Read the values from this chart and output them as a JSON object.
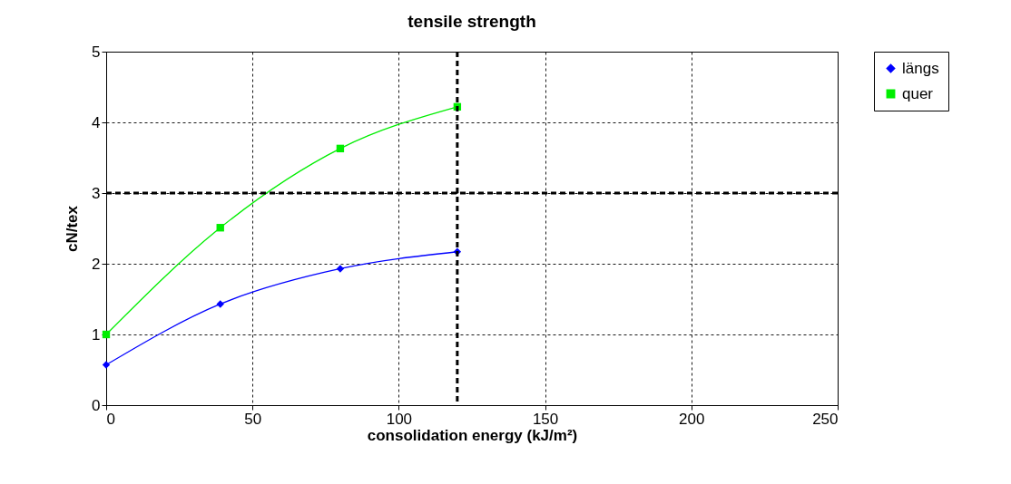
{
  "chart_data": {
    "type": "line",
    "title": "tensile strength",
    "xlabel": "consolidation energy (kJ/m²)",
    "ylabel": "cN/tex",
    "xlim": [
      0,
      250
    ],
    "xticks": [
      0,
      50,
      100,
      150,
      200,
      250
    ],
    "ylim": [
      0,
      5
    ],
    "yticks": [
      0,
      1,
      2,
      3,
      4,
      5
    ],
    "grid": true,
    "legend": "right",
    "line_style": "solid",
    "x": [
      0,
      39,
      80,
      120
    ],
    "series": [
      {
        "name": "längs",
        "color": "#0000ff",
        "marker": "diamond",
        "values": [
          0.57,
          1.43,
          1.93,
          2.17
        ]
      },
      {
        "name": "quer",
        "color": "#00ee00",
        "marker": "square",
        "values": [
          1.0,
          2.51,
          3.63,
          4.22
        ]
      }
    ],
    "ref_lines": [
      {
        "axis": "y",
        "value": 3,
        "color": "#000000",
        "line_style": "dashed"
      },
      {
        "axis": "x",
        "value": 120,
        "color": "#000000",
        "line_style": "dashed"
      }
    ]
  }
}
